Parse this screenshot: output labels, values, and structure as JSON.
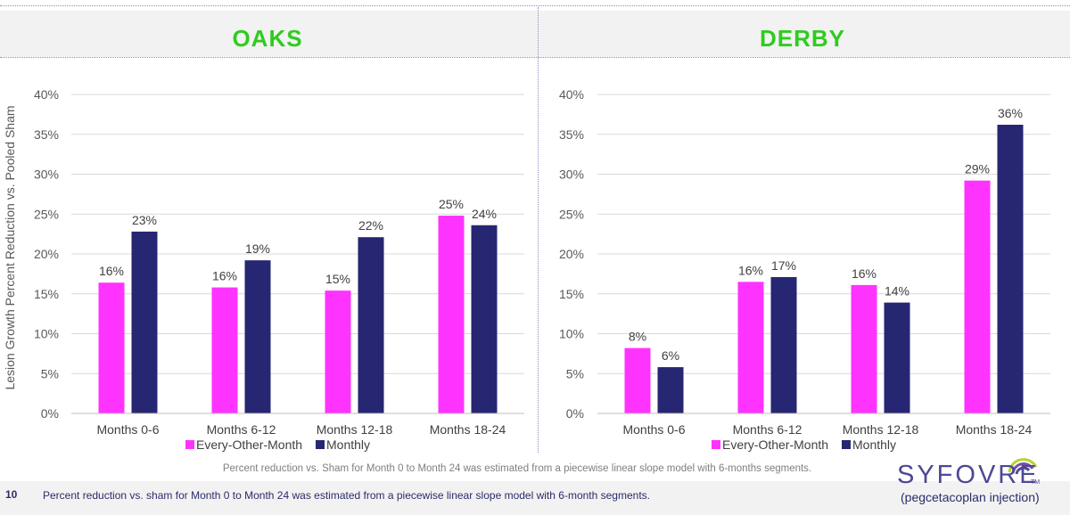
{
  "y_axis_label": "Lesion Growth Percent Reduction vs. Pooled Sham",
  "colors": {
    "every_other_month": "#ff33ff",
    "monthly": "#262673",
    "title": "#2ecc1f"
  },
  "chart_data": [
    {
      "type": "bar",
      "title": "OAKS",
      "categories": [
        "Months 0-6",
        "Months 6-12",
        "Months 12-18",
        "Months 18-24"
      ],
      "series": [
        {
          "name": "Every-Other-Month",
          "values": [
            16.4,
            15.8,
            15.4,
            24.8
          ],
          "labels": [
            "16%",
            "16%",
            "15%",
            "25%"
          ]
        },
        {
          "name": "Monthly",
          "values": [
            22.8,
            19.2,
            22.1,
            23.6
          ],
          "labels": [
            "23%",
            "19%",
            "22%",
            "24%"
          ]
        }
      ],
      "ylim": [
        0,
        40
      ],
      "yticks": [
        0,
        5,
        10,
        15,
        20,
        25,
        30,
        35,
        40
      ],
      "ytick_labels": [
        "0%",
        "5%",
        "10%",
        "15%",
        "20%",
        "25%",
        "30%",
        "35%",
        "40%"
      ],
      "grid": true,
      "legend": "bottom"
    },
    {
      "type": "bar",
      "title": "DERBY",
      "categories": [
        "Months 0-6",
        "Months 6-12",
        "Months 12-18",
        "Months 18-24"
      ],
      "series": [
        {
          "name": "Every-Other-Month",
          "values": [
            8.2,
            16.5,
            16.1,
            29.2
          ],
          "labels": [
            "8%",
            "16%",
            "16%",
            "29%"
          ]
        },
        {
          "name": "Monthly",
          "values": [
            5.8,
            17.1,
            13.9,
            36.2
          ],
          "labels": [
            "6%",
            "17%",
            "14%",
            "36%"
          ]
        }
      ],
      "ylim": [
        0,
        40
      ],
      "yticks": [
        0,
        5,
        10,
        15,
        20,
        25,
        30,
        35,
        40
      ],
      "ytick_labels": [
        "0%",
        "5%",
        "10%",
        "15%",
        "20%",
        "25%",
        "30%",
        "35%",
        "40%"
      ],
      "grid": true,
      "legend": "bottom"
    }
  ],
  "footnote_center": "Percent reduction vs. Sham for Month 0 to Month 24 was estimated from a piecewise linear slope model with 6-months segments.",
  "page_number": "10",
  "footnote_bottom": "Percent reduction vs. sham for Month 0 to Month 24 was estimated from a piecewise linear slope model with 6-month segments.",
  "logo": {
    "word": "SYFOVRE",
    "trademark": "TM",
    "subtitle": "(pegcetacoplan injection)"
  }
}
